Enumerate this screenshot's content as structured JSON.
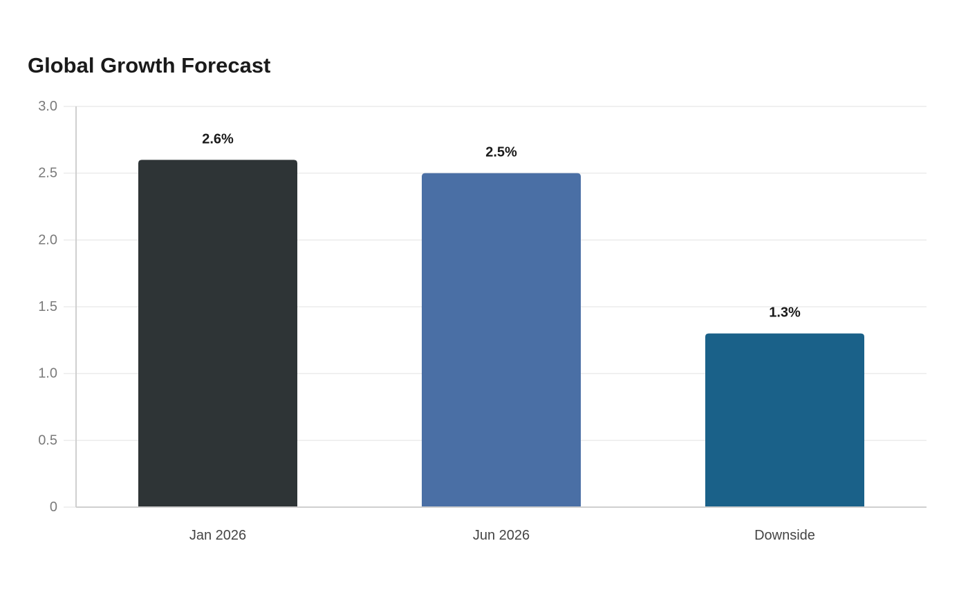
{
  "chart_data": {
    "type": "bar",
    "title": "Global Growth Forecast",
    "xlabel": "",
    "ylabel": "",
    "categories": [
      "Jan 2026",
      "Jun 2026",
      "Downside"
    ],
    "values": [
      2.6,
      2.5,
      1.3
    ],
    "data_labels": [
      "2.6%",
      "2.5%",
      "1.3%"
    ],
    "bar_colors": [
      "#2e3436",
      "#4a6fa5",
      "#1a6189"
    ],
    "ylim": [
      0,
      3.0
    ],
    "y_ticks": [
      0,
      0.5,
      1.0,
      1.5,
      2.0,
      2.5,
      3.0
    ],
    "y_tick_labels": [
      "0",
      "0.5",
      "1.0",
      "1.5",
      "2.0",
      "2.5",
      "3.0"
    ],
    "grid": true,
    "legend": "none"
  }
}
